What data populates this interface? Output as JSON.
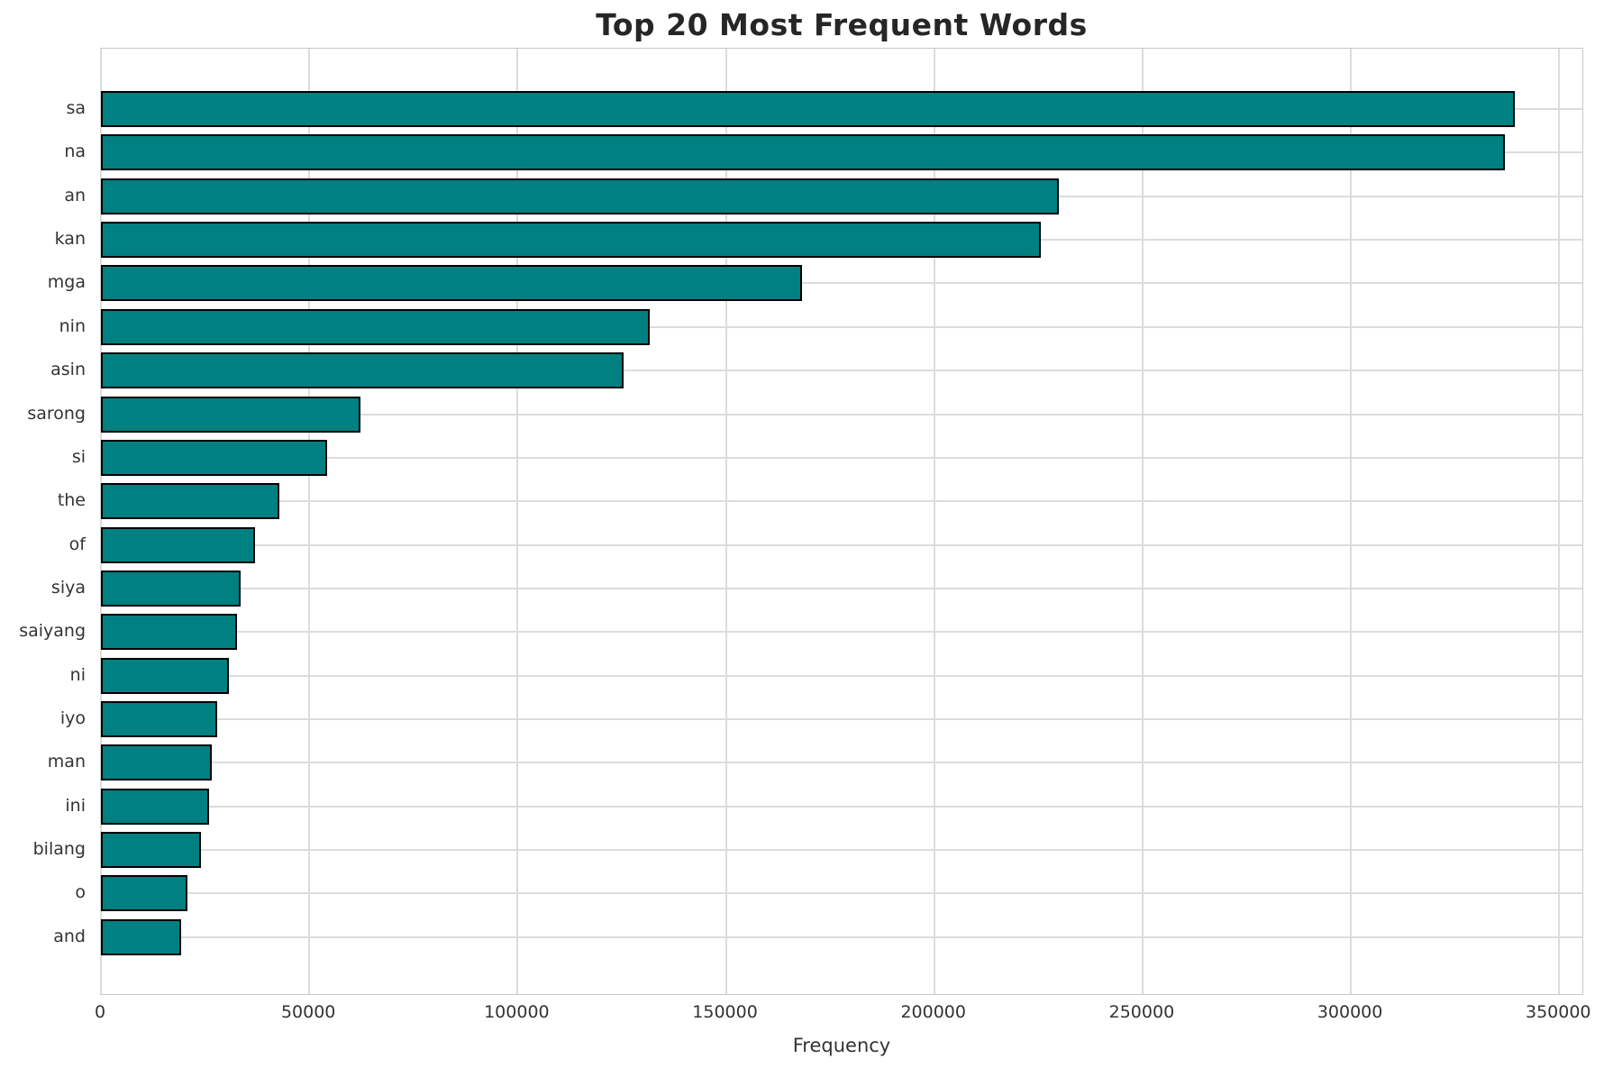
{
  "chart_data": {
    "type": "bar",
    "orientation": "horizontal",
    "title": "Top 20 Most Frequent Words",
    "xlabel": "Frequency",
    "ylabel": "",
    "categories": [
      "sa",
      "na",
      "an",
      "kan",
      "mga",
      "nin",
      "asin",
      "sarong",
      "si",
      "the",
      "of",
      "siya",
      "saiyang",
      "ni",
      "iyo",
      "man",
      "ini",
      "bilang",
      "o",
      "and"
    ],
    "values": [
      339400,
      337000,
      229800,
      225600,
      168200,
      131800,
      125500,
      62300,
      54200,
      42900,
      36900,
      33600,
      32700,
      30800,
      27800,
      26700,
      26000,
      23900,
      20800,
      19300
    ],
    "xlim": [
      0,
      356000
    ],
    "xticks": [
      0,
      50000,
      100000,
      150000,
      200000,
      250000,
      300000,
      350000
    ],
    "grid": true,
    "legend_position": "none",
    "colors": {
      "bar_fill": "#008080",
      "bar_edge": "#000000",
      "grid_line": "#dcdcdc",
      "spine": "#c8c8c8",
      "title_text": "#262626",
      "tick_text": "#333333"
    }
  }
}
